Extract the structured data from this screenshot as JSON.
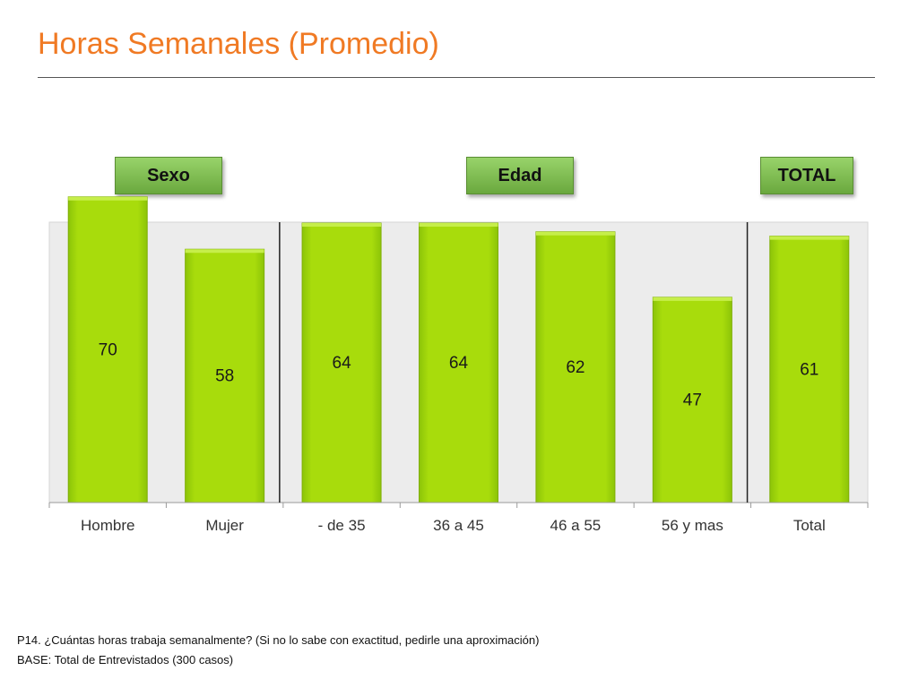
{
  "title": "Horas Semanales (Promedio)",
  "group_labels": {
    "sexo": "Sexo",
    "edad": "Edad",
    "total": "TOTAL"
  },
  "footnotes": {
    "question": "P14. ¿Cuántas horas trabaja semanalmente? (Si no lo sabe con exactitud, pedirle una aproximación)",
    "base": "BASE: Total de Entrevistados (300 casos)"
  },
  "colors": {
    "title": "#f07a24",
    "bar": "#a2d80a",
    "bar_edge": "#7fae06",
    "plot_bg": "#ececec",
    "group_label": "#7cbd4c"
  },
  "chart_data": {
    "type": "bar",
    "categories": [
      "Hombre",
      "Mujer",
      "- de 35",
      "36 a 45",
      "46 a 55",
      "56 y mas",
      "Total"
    ],
    "values": [
      70,
      58,
      64,
      64,
      62,
      47,
      61
    ],
    "ylim": [
      0,
      80
    ],
    "grid": false,
    "legend": "none",
    "groups": [
      {
        "label": "Sexo",
        "categories": [
          "Hombre",
          "Mujer"
        ]
      },
      {
        "label": "Edad",
        "categories": [
          "- de 35",
          "36 a 45",
          "46 a 55",
          "56 y mas"
        ]
      },
      {
        "label": "TOTAL",
        "categories": [
          "Total"
        ]
      }
    ]
  }
}
